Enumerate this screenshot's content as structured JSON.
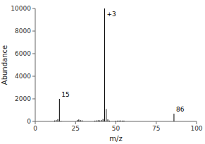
{
  "chart_data": {
    "type": "stem",
    "xlabel": "m/z",
    "ylabel": "Abundance",
    "x": [
      12,
      13,
      14,
      15,
      16,
      26,
      27,
      28,
      29,
      37,
      38,
      39,
      40,
      41,
      42,
      43,
      44,
      45,
      46,
      50,
      51,
      52,
      53,
      54,
      55,
      86
    ],
    "values": [
      80,
      130,
      200,
      2000,
      50,
      120,
      170,
      120,
      100,
      70,
      90,
      110,
      90,
      130,
      220,
      10000,
      1100,
      180,
      70,
      60,
      70,
      70,
      80,
      70,
      70,
      680
    ],
    "xlim": [
      0,
      100
    ],
    "ylim": [
      0,
      10000
    ],
    "xticks": [
      0,
      25,
      50,
      75,
      100
    ],
    "yticks": [
      0,
      2000,
      4000,
      6000,
      8000,
      10000
    ],
    "color": "#000000",
    "grid": false,
    "annotations": [
      {
        "text": "15",
        "x": 15,
        "y": 2000
      },
      {
        "text": "+3",
        "x": 43,
        "y": 10000
      },
      {
        "text": "86",
        "x": 86,
        "y": 680
      }
    ]
  }
}
